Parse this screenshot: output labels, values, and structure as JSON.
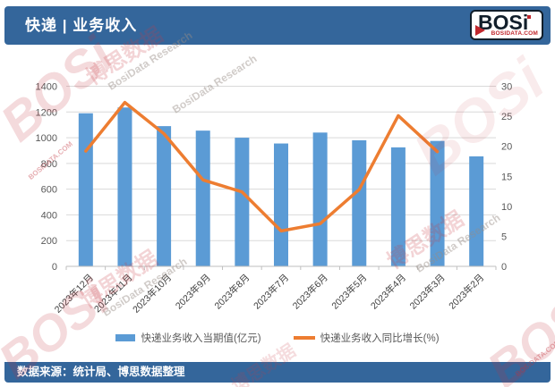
{
  "header": {
    "title": "快递 | 业务收入",
    "logo": {
      "brand": "BOSi",
      "domain": "BOSIDATA.COM"
    }
  },
  "footer": {
    "source": "数据来源：统计局、博思数据整理"
  },
  "watermarks": {
    "brand": "BOSi",
    "cn": "博思数据",
    "research": "BosiData Research",
    "domain": "BOSIDATA.COM"
  },
  "colors": {
    "header_bar": "#34669B",
    "bar_fill": "#5B9BD5",
    "line_stroke": "#ED7D31",
    "gridline": "#D9D9D9",
    "axis_line": "#BFBFBF",
    "tick_label": "#595959",
    "x_label": "#404040",
    "logo_red": "#C0272D"
  },
  "chart_data": {
    "type": "bar+line",
    "title": "快递 | 业务收入",
    "categories": [
      "2023年12月",
      "2023年11月",
      "2023年10月",
      "2023年9月",
      "2023年8月",
      "2023年7月",
      "2023年6月",
      "2023年5月",
      "2023年4月",
      "2023年3月",
      "2023年2月"
    ],
    "series": [
      {
        "name": "快递业务收入当期值(亿元)",
        "kind": "bar",
        "axis": "left",
        "color": "#5B9BD5",
        "values": [
          1190,
          1235,
          1090,
          1055,
          1000,
          955,
          1040,
          980,
          925,
          975,
          855
        ]
      },
      {
        "name": "快递业务收入同比增长(%)",
        "kind": "line",
        "axis": "right",
        "color": "#ED7D31",
        "values": [
          19.2,
          27.3,
          22.1,
          14.4,
          12.4,
          5.9,
          7.1,
          12.8,
          25.1,
          19.1,
          null
        ]
      }
    ],
    "left_axis": {
      "min": 0,
      "max": 1400,
      "step": 200
    },
    "right_axis": {
      "min": 0,
      "max": 30,
      "step": 5
    },
    "grid": true,
    "legend_position": "bottom",
    "x_label_rotation": -45
  }
}
